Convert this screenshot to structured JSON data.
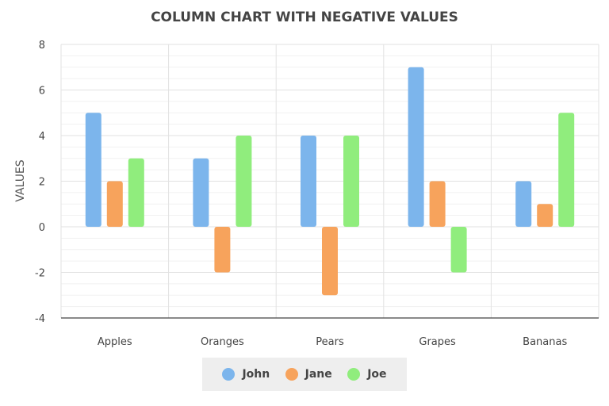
{
  "chart_data": {
    "type": "bar",
    "title": "COLUMN CHART WITH NEGATIVE VALUES",
    "ylabel": "VALUES",
    "xlabel": "",
    "categories": [
      "Apples",
      "Oranges",
      "Pears",
      "Grapes",
      "Bananas"
    ],
    "series": [
      {
        "name": "John",
        "color": "#7cb5ec",
        "values": [
          5,
          3,
          4,
          7,
          2
        ]
      },
      {
        "name": "Jane",
        "color": "#f7a35c",
        "values": [
          2,
          -2,
          -3,
          2,
          1
        ]
      },
      {
        "name": "Joe",
        "color": "#90ed7d",
        "values": [
          3,
          4,
          4,
          -2,
          5
        ]
      }
    ],
    "ylim": [
      -4,
      8
    ],
    "yticks": [
      "8",
      "6",
      "4",
      "2",
      "0",
      "-2",
      "-4"
    ],
    "grid": true,
    "legend_position": "bottom-center"
  }
}
